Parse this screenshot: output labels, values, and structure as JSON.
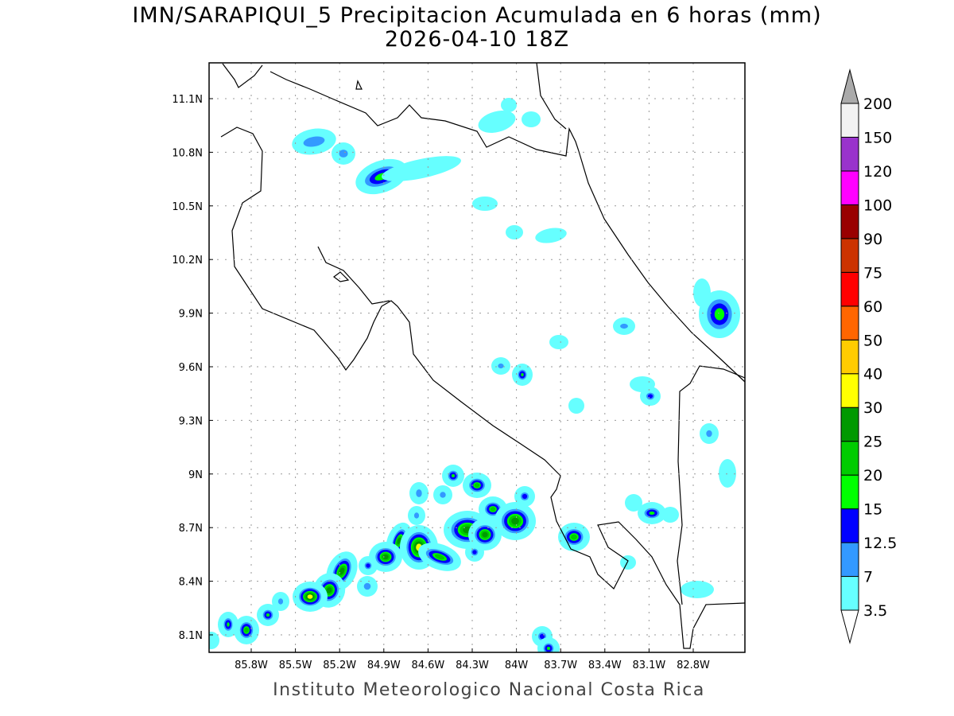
{
  "title": {
    "line1": "IMN/SARAPIQUI_5 Precipitacion Acumulada en 6 horas (mm)",
    "line2": "2026-04-10 18Z"
  },
  "credit": "Instituto Meteorologico Nacional Costa Rica",
  "axes": {
    "lon_ticks": [
      "85.8W",
      "85.5W",
      "85.2W",
      "84.9W",
      "84.6W",
      "84.3W",
      "84W",
      "83.7W",
      "83.4W",
      "83.1W",
      "82.8W"
    ],
    "lat_ticks": [
      "11.1N",
      "10.8N",
      "10.5N",
      "10.2N",
      "9.9N",
      "9.6N",
      "9.3N",
      "9N",
      "8.7N",
      "8.4N",
      "8.1N"
    ]
  },
  "colorbar": {
    "levels": [
      "3.5",
      "7",
      "12.5",
      "15",
      "20",
      "25",
      "30",
      "40",
      "50",
      "60",
      "75",
      "90",
      "100",
      "120",
      "150",
      "200"
    ],
    "colors": [
      "#66ffff",
      "#3399ff",
      "#0000ff",
      "#00ff00",
      "#00cc00",
      "#009900",
      "#ffff00",
      "#ffcc00",
      "#ff6600",
      "#ff0000",
      "#cc3300",
      "#990000",
      "#ff00ff",
      "#9933cc",
      "#f2f2f2"
    ],
    "over_color": "#aaaaaa",
    "under_color": "#ffffff"
  }
}
